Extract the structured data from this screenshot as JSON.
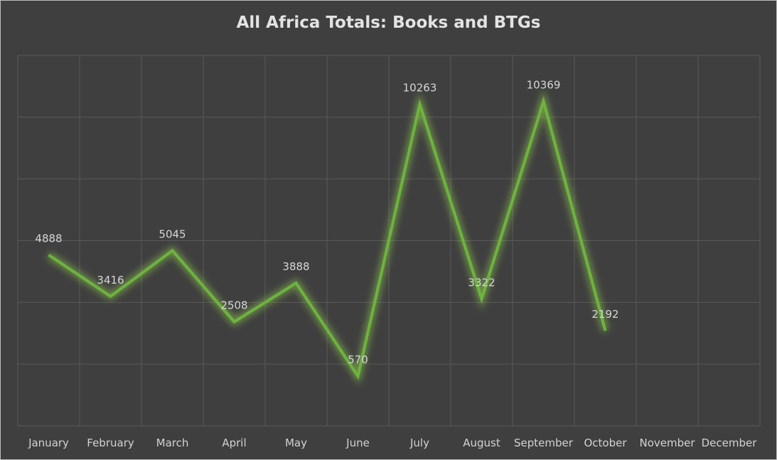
{
  "chart_data": {
    "type": "line",
    "title": "All Africa Totals: Books and BTGs",
    "xlabel": "",
    "ylabel": "",
    "categories": [
      "January",
      "February",
      "March",
      "April",
      "May",
      "June",
      "July",
      "August",
      "September",
      "October",
      "November",
      "December"
    ],
    "series": [
      {
        "values": [
          4888,
          3416,
          5045,
          2508,
          3888,
          570,
          10263,
          3322,
          10369,
          2192,
          null,
          null
        ],
        "color": "#6db33f"
      }
    ],
    "ylim": [
      -1200,
      12000
    ],
    "grid": true,
    "legend": "none",
    "data_labels": true
  },
  "colors": {
    "background": "#3f3f3f",
    "gridline": "#5a5a5a",
    "line": "#6db33f",
    "glow": "#9be04f",
    "text": "#d6d6d6"
  }
}
